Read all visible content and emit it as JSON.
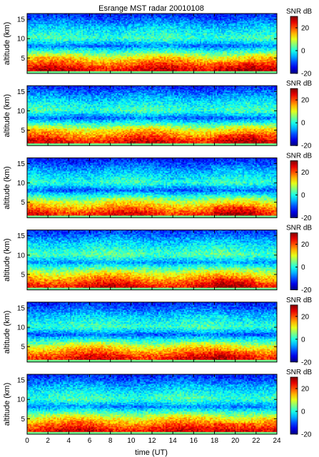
{
  "chart_data": {
    "type": "heatmap",
    "title": "Esrange MST radar 20010108",
    "xlabel": "time (UT)",
    "ylabel": "altitude (km)",
    "xlim": [
      0,
      24
    ],
    "ylim": [
      1,
      16.5
    ],
    "x_ticks": [
      0,
      2,
      4,
      6,
      8,
      10,
      12,
      14,
      16,
      18,
      20,
      22,
      24
    ],
    "y_ticks": [
      5,
      10,
      15
    ],
    "panel_count": 6,
    "colorbar": {
      "title": "SNR dB",
      "range": [
        -20,
        30
      ],
      "ticks": [
        -20,
        0,
        20
      ],
      "colormap": "jet"
    },
    "panels": [
      {
        "panel": 1,
        "snr_profile": [
          {
            "alt_km": 2,
            "snr_db": 25
          },
          {
            "alt_km": 5,
            "snr_db": 12
          },
          {
            "alt_km": 8,
            "snr_db": -8
          },
          {
            "alt_km": 10,
            "snr_db": 2
          },
          {
            "alt_km": 13,
            "snr_db": -4
          },
          {
            "alt_km": 16,
            "snr_db": -12
          }
        ]
      },
      {
        "panel": 2,
        "snr_profile": [
          {
            "alt_km": 2,
            "snr_db": 24
          },
          {
            "alt_km": 5,
            "snr_db": 12
          },
          {
            "alt_km": 8,
            "snr_db": -9
          },
          {
            "alt_km": 10,
            "snr_db": 2
          },
          {
            "alt_km": 13,
            "snr_db": -4
          },
          {
            "alt_km": 16,
            "snr_db": -12
          }
        ]
      },
      {
        "panel": 3,
        "snr_profile": [
          {
            "alt_km": 2,
            "snr_db": 23
          },
          {
            "alt_km": 5,
            "snr_db": 10
          },
          {
            "alt_km": 8,
            "snr_db": -9
          },
          {
            "alt_km": 10,
            "snr_db": 1
          },
          {
            "alt_km": 13,
            "snr_db": -5
          },
          {
            "alt_km": 16,
            "snr_db": -13
          }
        ]
      },
      {
        "panel": 4,
        "snr_profile": [
          {
            "alt_km": 2,
            "snr_db": 24
          },
          {
            "alt_km": 5,
            "snr_db": 12
          },
          {
            "alt_km": 8,
            "snr_db": -6
          },
          {
            "alt_km": 10,
            "snr_db": 3
          },
          {
            "alt_km": 13,
            "snr_db": -3
          },
          {
            "alt_km": 16,
            "snr_db": -11
          }
        ]
      },
      {
        "panel": 5,
        "snr_profile": [
          {
            "alt_km": 2,
            "snr_db": 24
          },
          {
            "alt_km": 5,
            "snr_db": 11
          },
          {
            "alt_km": 8,
            "snr_db": -9
          },
          {
            "alt_km": 10,
            "snr_db": 2
          },
          {
            "alt_km": 13,
            "snr_db": -4
          },
          {
            "alt_km": 16,
            "snr_db": -12
          }
        ]
      },
      {
        "panel": 6,
        "snr_profile": [
          {
            "alt_km": 2,
            "snr_db": 24
          },
          {
            "alt_km": 5,
            "snr_db": 12
          },
          {
            "alt_km": 8,
            "snr_db": -7
          },
          {
            "alt_km": 10,
            "snr_db": 2
          },
          {
            "alt_km": 13,
            "snr_db": -4
          },
          {
            "alt_km": 16,
            "snr_db": -12
          }
        ]
      }
    ]
  }
}
